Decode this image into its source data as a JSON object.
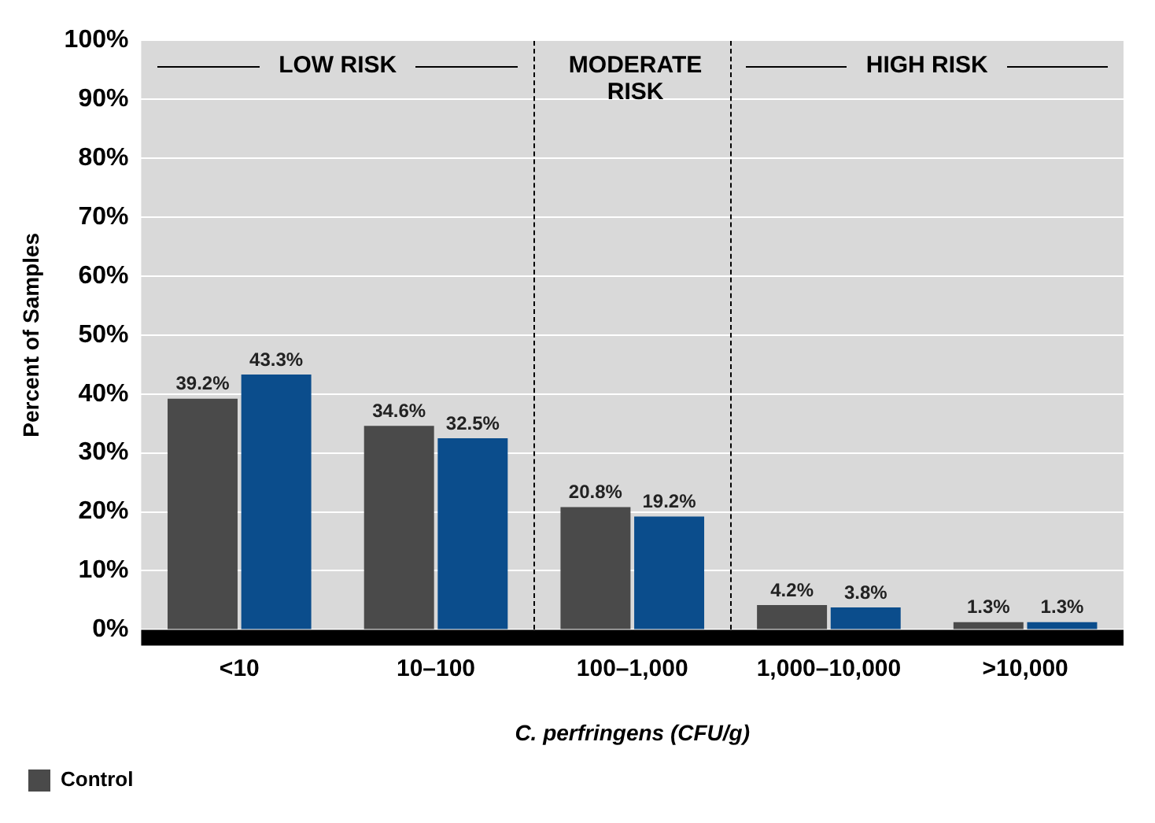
{
  "chart_data": {
    "type": "bar",
    "xlabel": "C. perfringens (CFU/g)",
    "ylabel": "Percent of Samples",
    "categories": [
      "<10",
      "10–100",
      "100–1,000",
      "1,000–10,000",
      ">10,000"
    ],
    "series": [
      {
        "color": "#0b4d8c",
        "values": [
          43.3,
          32.5,
          19.2,
          3.8,
          1.3
        ],
        "value_labels": [
          "43.3%",
          "32.5%",
          "19.2%",
          "3.8%",
          "1.3%"
        ]
      },
      {
        "name": "Control",
        "color": "#4a4a4a",
        "values": [
          39.2,
          34.6,
          20.8,
          4.2,
          1.3
        ],
        "value_labels": [
          "39.2%",
          "34.6%",
          "20.8%",
          "4.2%",
          "1.3%"
        ]
      }
    ],
    "ylim": [
      0,
      100
    ],
    "yticks": [
      {
        "value": 0,
        "label": "0%"
      },
      {
        "value": 10,
        "label": "10%"
      },
      {
        "value": 20,
        "label": "20%"
      },
      {
        "value": 30,
        "label": "30%"
      },
      {
        "value": 40,
        "label": "40%"
      },
      {
        "value": 50,
        "label": "50%"
      },
      {
        "value": 60,
        "label": "60%"
      },
      {
        "value": 70,
        "label": "70%"
      },
      {
        "value": 80,
        "label": "80%"
      },
      {
        "value": 90,
        "label": "90%"
      },
      {
        "value": 100,
        "label": "100%"
      }
    ],
    "annotations": [
      "LOW RISK",
      "MODERATE RISK",
      "HIGH RISK"
    ],
    "grid": "y",
    "legend": "bottom left"
  }
}
